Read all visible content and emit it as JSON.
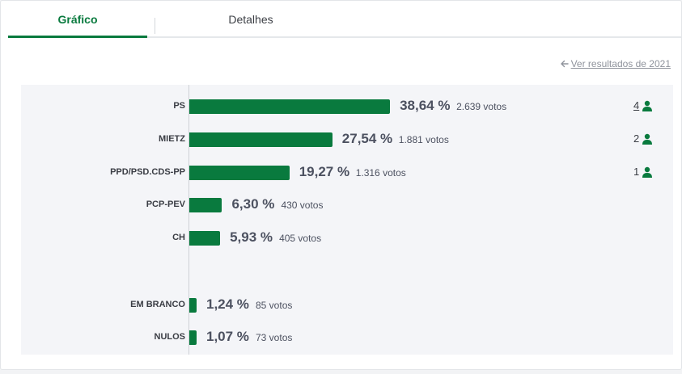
{
  "tabs": [
    {
      "label": "Gráfico",
      "active": true
    },
    {
      "label": "Detalhes",
      "active": false
    }
  ],
  "previous_results_link": "Ver resultados de 2021",
  "colors": {
    "accent": "#097a3e",
    "text": "#4c5160"
  },
  "chart_data": {
    "type": "bar",
    "orientation": "horizontal",
    "categories": [
      "PS",
      "MIETZ",
      "PPD/PSD.CDS-PP",
      "PCP-PEV",
      "CH",
      "EM BRANCO",
      "NULOS"
    ],
    "values": [
      38.64,
      27.54,
      19.27,
      6.3,
      5.93,
      1.24,
      1.07
    ],
    "value_labels": [
      "38,64 %",
      "27,54 %",
      "19,27 %",
      "6,30 %",
      "5,93 %",
      "1,24 %",
      "1,07 %"
    ],
    "votes": [
      "2.639 votos",
      "1.881 votos",
      "1.316 votos",
      "430 votos",
      "405 votos",
      "85 votos",
      "73 votos"
    ],
    "seats": [
      "4",
      "2",
      "1",
      null,
      null,
      null,
      null
    ],
    "unit": "%"
  }
}
